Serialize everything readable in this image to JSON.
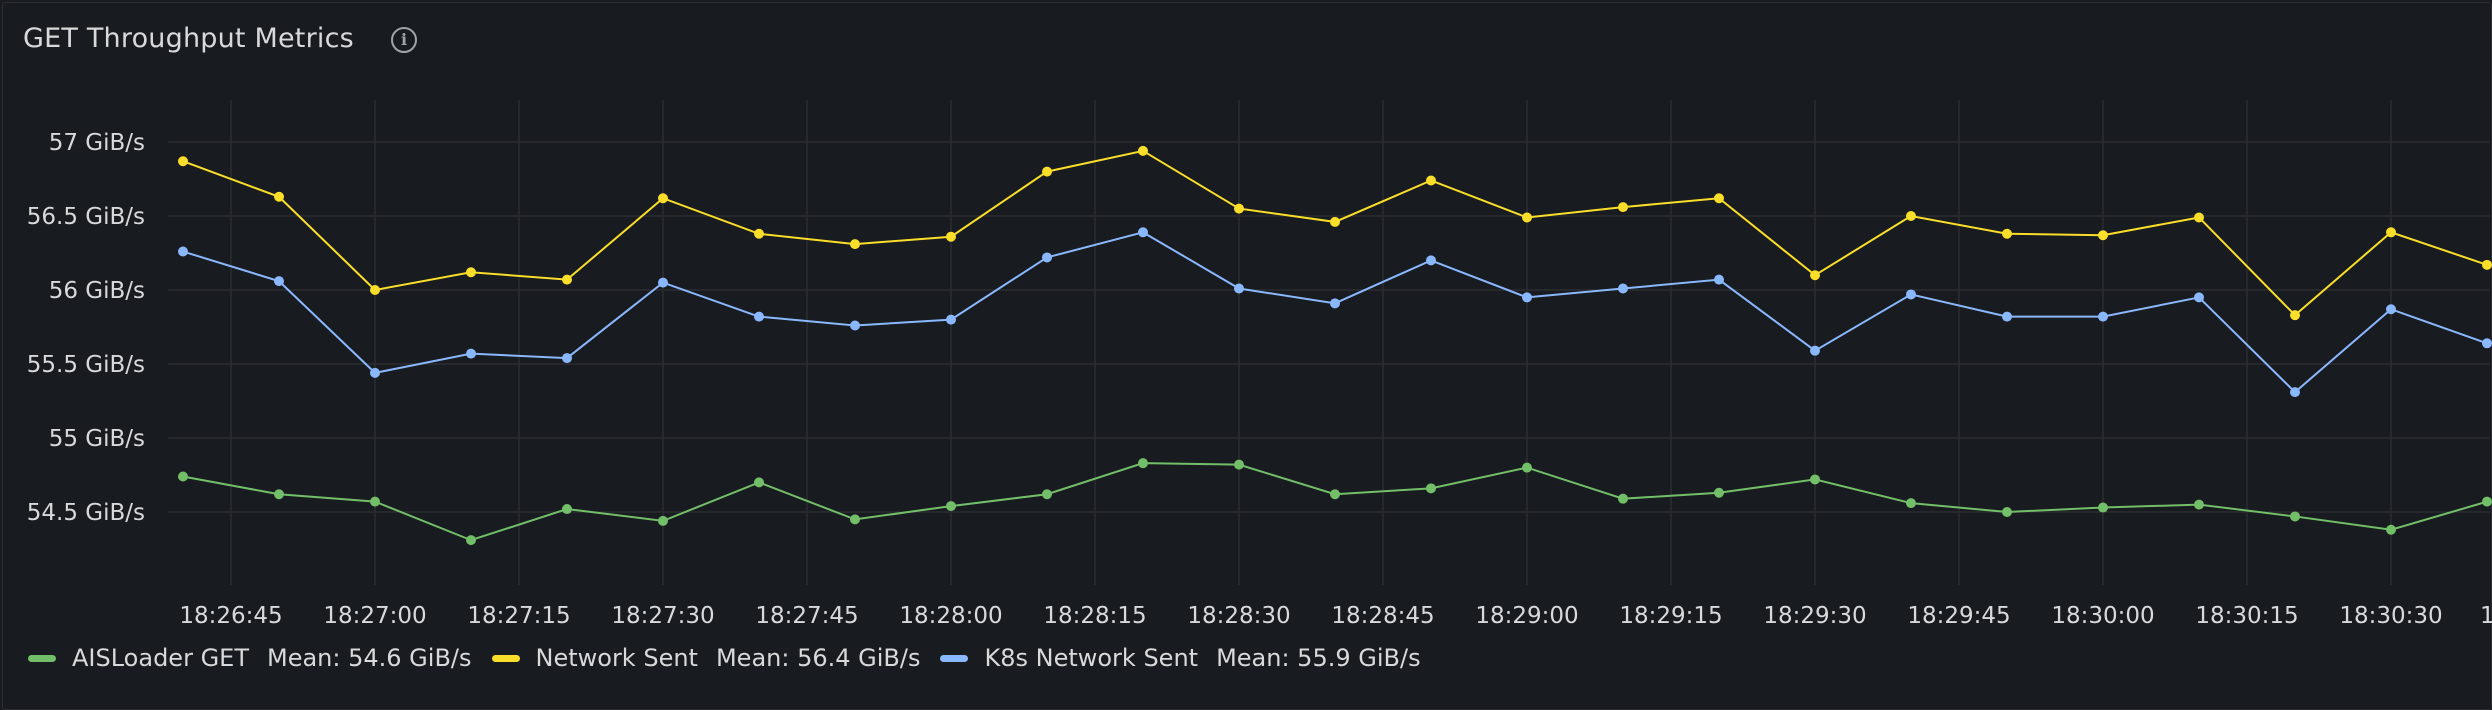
{
  "panel": {
    "title": "GET Throughput Metrics",
    "info_icon": "info-circle-icon"
  },
  "chart_data": {
    "type": "line",
    "x": [
      "18:26:40",
      "18:26:50",
      "18:27:00",
      "18:27:10",
      "18:27:20",
      "18:27:30",
      "18:27:40",
      "18:27:50",
      "18:28:00",
      "18:28:10",
      "18:28:20",
      "18:28:30",
      "18:28:40",
      "18:28:50",
      "18:29:00",
      "18:29:10",
      "18:29:20",
      "18:29:30",
      "18:29:40",
      "18:29:50",
      "18:30:00",
      "18:30:10",
      "18:30:20",
      "18:30:30",
      "18:30:40"
    ],
    "x_tick_labels": [
      "18:26:45",
      "18:27:00",
      "18:27:15",
      "18:27:30",
      "18:27:45",
      "18:28:00",
      "18:28:15",
      "18:28:30",
      "18:28:45",
      "18:29:00",
      "18:29:15",
      "18:29:30",
      "18:29:45",
      "18:30:00",
      "18:30:15",
      "18:30:30",
      "1"
    ],
    "y_tick_labels": [
      "57 GiB/s",
      "56.5 GiB/s",
      "56 GiB/s",
      "55.5 GiB/s",
      "55 GiB/s",
      "54.5 GiB/s"
    ],
    "y_ticks": [
      57,
      56.5,
      56,
      55.5,
      55,
      54.5
    ],
    "ylim": [
      54.0,
      57.3
    ],
    "grid": true,
    "legend_position": "bottom-left",
    "series": [
      {
        "name": "AISLoader GET",
        "color": "#73bf69",
        "mean_label": "Mean: 54.6 GiB/s",
        "values": [
          54.74,
          54.62,
          54.57,
          54.31,
          54.52,
          54.44,
          54.7,
          54.45,
          54.54,
          54.62,
          54.83,
          54.82,
          54.62,
          54.66,
          54.8,
          54.59,
          54.63,
          54.72,
          54.56,
          54.5,
          54.53,
          54.55,
          54.47,
          54.38,
          54.57
        ]
      },
      {
        "name": "Network Sent",
        "color": "#fade2a",
        "mean_label": "Mean: 56.4 GiB/s",
        "values": [
          56.87,
          56.63,
          56.0,
          56.12,
          56.07,
          56.62,
          56.38,
          56.31,
          56.36,
          56.8,
          56.94,
          56.55,
          56.46,
          56.74,
          56.49,
          56.56,
          56.62,
          56.1,
          56.5,
          56.38,
          56.37,
          56.49,
          55.83,
          56.39,
          56.17
        ]
      },
      {
        "name": "K8s Network Sent",
        "color": "#8ab8ff",
        "mean_label": "Mean: 55.9 GiB/s",
        "values": [
          56.26,
          56.06,
          55.44,
          55.57,
          55.54,
          56.05,
          55.82,
          55.76,
          55.8,
          56.22,
          56.39,
          56.01,
          55.91,
          56.2,
          55.95,
          56.01,
          56.07,
          55.59,
          55.97,
          55.82,
          55.82,
          55.95,
          55.31,
          55.87,
          55.64
        ]
      }
    ]
  }
}
